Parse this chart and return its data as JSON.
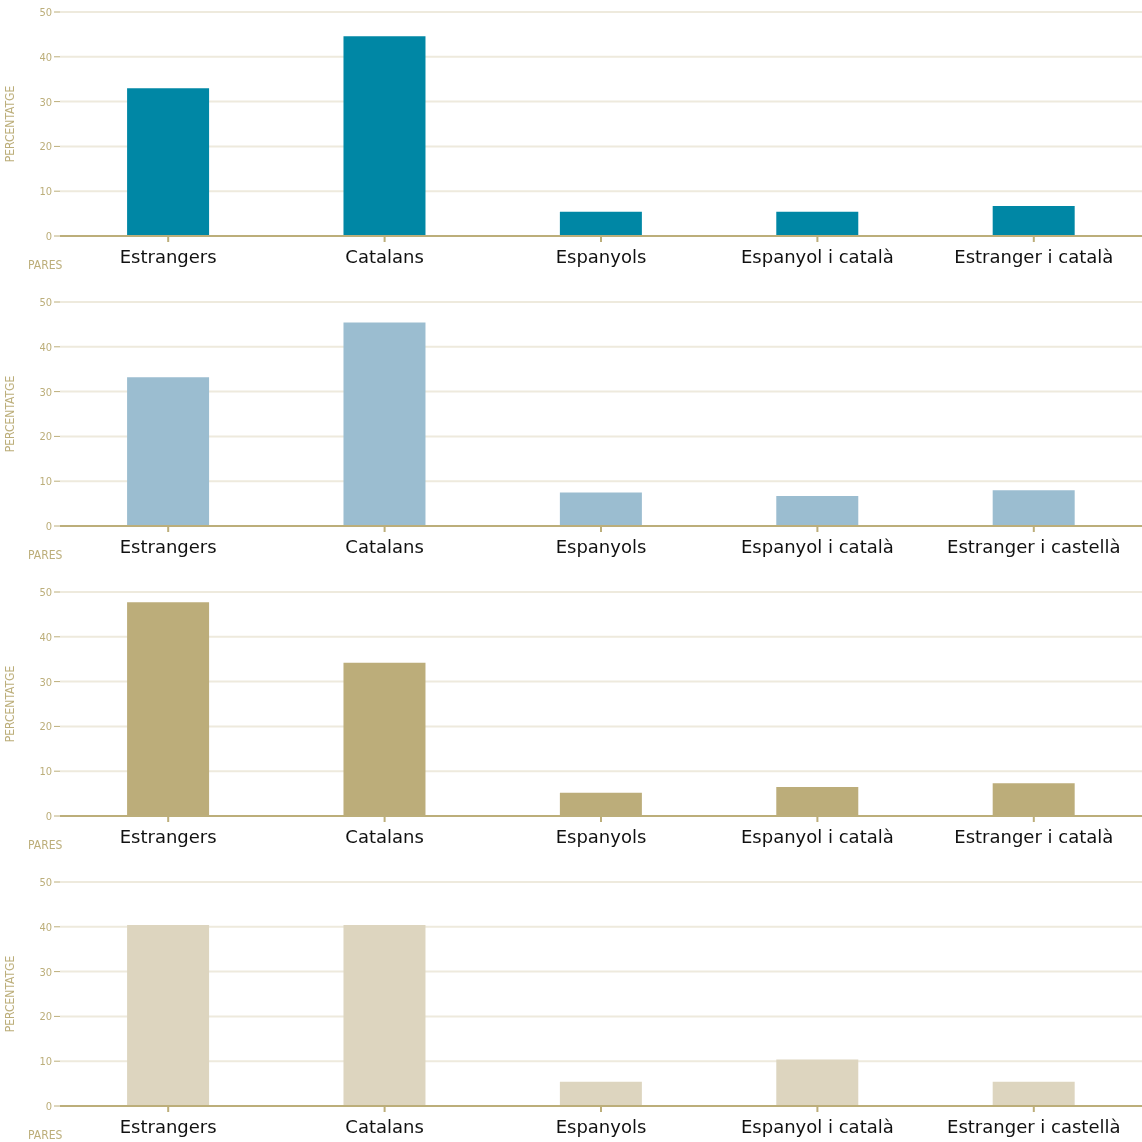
{
  "chart_data": [
    {
      "type": "bar",
      "xlabel": "PARES",
      "ylabel": "PERCENTATGE",
      "categories": [
        "Estrangers",
        "Catalans",
        "Espanyols",
        "Espanyol i català",
        "Estranger i català"
      ],
      "values": [
        33.0,
        44.6,
        5.4,
        5.4,
        6.7
      ],
      "color": "#0087a5",
      "ylim": [
        0,
        50
      ],
      "yticks": [
        0,
        10,
        20,
        30,
        40,
        50
      ],
      "grid": "y"
    },
    {
      "type": "bar",
      "xlabel": "PARES",
      "ylabel": "PERCENTATGE",
      "categories": [
        "Estrangers",
        "Catalans",
        "Espanyols",
        "Espanyol i català",
        "Estranger i castellà"
      ],
      "values": [
        33.2,
        45.4,
        7.5,
        6.7,
        8.0
      ],
      "color": "#9bbdd0",
      "ylim": [
        0,
        50
      ],
      "yticks": [
        0,
        10,
        20,
        30,
        40,
        50
      ],
      "grid": "y"
    },
    {
      "type": "bar",
      "xlabel": "PARES",
      "ylabel": "PERCENTATGE",
      "categories": [
        "Estrangers",
        "Catalans",
        "Espanyols",
        "Espanyol i català",
        "Estranger i català"
      ],
      "values": [
        47.7,
        34.2,
        5.2,
        6.5,
        7.3
      ],
      "color": "#bcad7a",
      "ylim": [
        0,
        50
      ],
      "yticks": [
        0,
        10,
        20,
        30,
        40,
        50
      ],
      "grid": "y"
    },
    {
      "type": "bar",
      "xlabel": "PARES",
      "ylabel": "PERCENTATGE",
      "categories": [
        "Estrangers",
        "Catalans",
        "Espanyols",
        "Espanyol i català",
        "Estranger i castellà"
      ],
      "values": [
        40.4,
        40.4,
        5.4,
        10.4,
        5.4
      ],
      "color": "#ddd5bf",
      "ylim": [
        0,
        50
      ],
      "yticks": [
        0,
        10,
        20,
        30,
        40,
        50
      ],
      "grid": "y"
    }
  ]
}
